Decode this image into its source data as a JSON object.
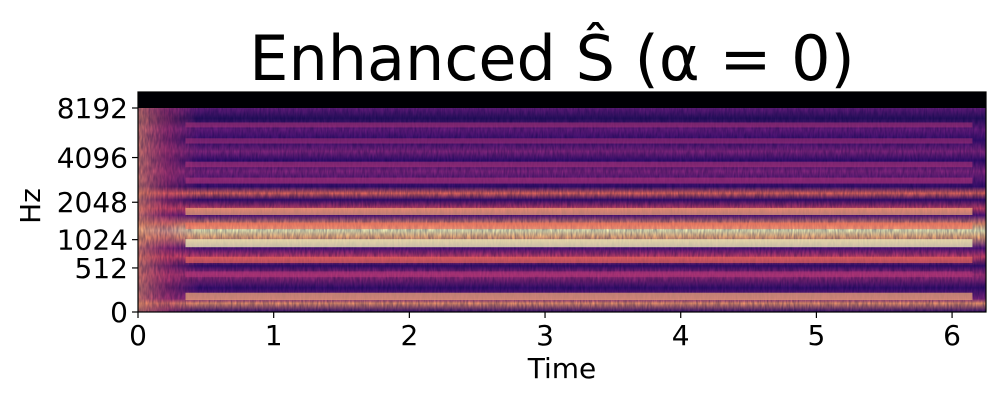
{
  "chart_data": {
    "type": "heatmap",
    "title": "Enhanced Ŝ (α = 0)",
    "xlabel": "Time",
    "ylabel": "Hz",
    "x_ticks": [
      "0",
      "1",
      "2",
      "3",
      "4",
      "5",
      "6"
    ],
    "y_ticks": [
      "0",
      "512",
      "1024",
      "2048",
      "4096",
      "8192"
    ],
    "xlim": [
      0,
      6.25
    ],
    "y_scale": "mel",
    "colormap": "magma",
    "bands_hz": [
      {
        "hz": 150,
        "level": 0.88
      },
      {
        "hz": 420,
        "level": 0.55
      },
      {
        "hz": 640,
        "level": 0.65
      },
      {
        "hz": 950,
        "level": 1.0
      },
      {
        "hz": 1350,
        "level": 0.7
      },
      {
        "hz": 1750,
        "level": 0.82
      },
      {
        "hz": 2900,
        "level": 0.6
      },
      {
        "hz": 3700,
        "level": 0.5
      },
      {
        "hz": 5200,
        "level": 0.45
      },
      {
        "hz": 6500,
        "level": 0.4
      }
    ],
    "empty_above_hz": 8192
  },
  "colors": {
    "dark": "#000004",
    "purple": "#3b0f70",
    "magenta": "#8c2981",
    "pink": "#de4968",
    "orange": "#fe9f6d",
    "light": "#fcfdbf"
  }
}
